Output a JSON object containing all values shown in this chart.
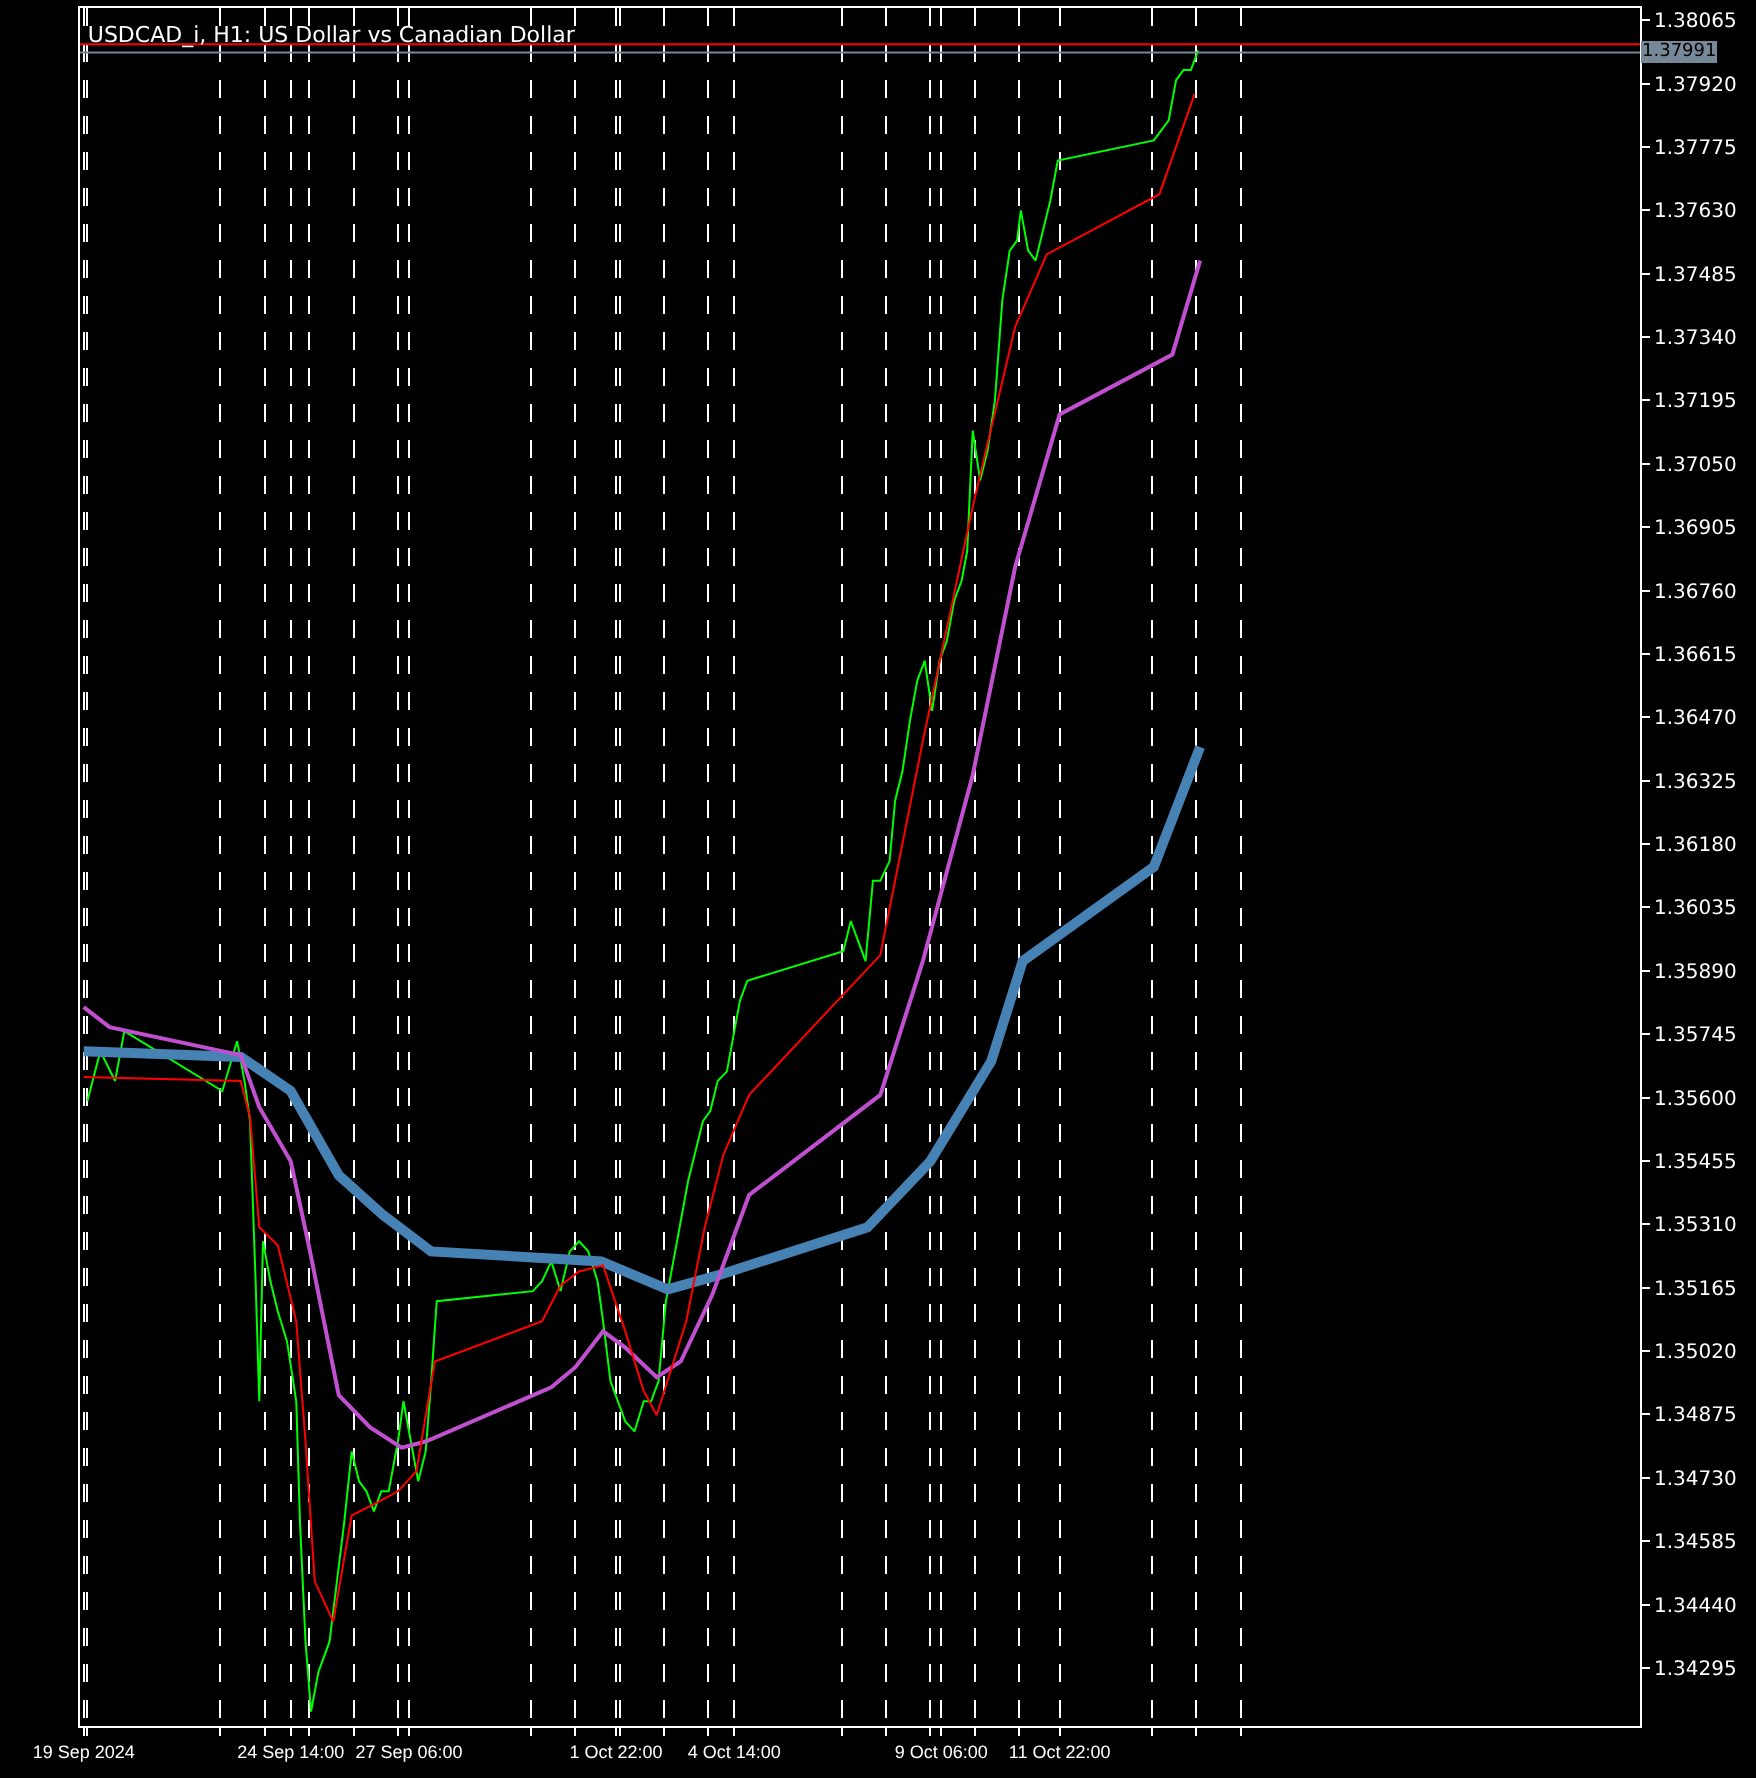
{
  "chart_data": {
    "type": "line",
    "title": "USDCAD_i, H1: US Dollar vs Canadian Dollar",
    "series": [
      {
        "color": "#00ff00",
        "x": [
          "2024-09-20T00:00",
          "2024-09-20T07:00",
          "2024-09-20T15:00",
          "2024-09-20T20:00",
          "2024-09-23T01:00",
          "2024-09-23T09:00",
          "2024-09-23T13:00",
          "2024-09-23T16:00",
          "2024-09-23T19:00",
          "2024-09-23T21:00",
          "2024-09-23T23:00",
          "2024-09-24T03:00",
          "2024-09-24T07:00",
          "2024-09-24T12:00",
          "2024-09-24T17:00",
          "2024-09-24T19:00",
          "2024-09-24T22:00",
          "2024-09-25T01:00",
          "2024-09-25T05:00",
          "2024-09-25T11:00",
          "2024-09-25T15:00",
          "2024-09-25T19:00",
          "2024-09-25T23:00",
          "2024-09-26T03:00",
          "2024-09-26T07:00",
          "2024-09-26T11:00",
          "2024-09-26T15:00",
          "2024-09-26T19:00",
          "2024-09-27T00:00",
          "2024-09-27T03:00",
          "2024-09-27T07:00",
          "2024-09-27T11:00",
          "2024-09-27T15:00",
          "2024-09-27T18:00",
          "2024-09-27T21:00",
          "2024-09-30T01:00",
          "2024-09-30T06:00",
          "2024-09-30T11:00",
          "2024-09-30T16:00",
          "2024-09-30T21:00",
          "2024-10-01T02:00",
          "2024-10-01T07:00",
          "2024-10-01T12:00",
          "2024-10-01T15:00",
          "2024-10-01T19:00",
          "2024-10-01T23:00",
          "2024-10-02T03:00",
          "2024-10-02T08:00",
          "2024-10-02T13:00",
          "2024-10-02T17:00",
          "2024-10-02T21:00",
          "2024-10-03T01:00",
          "2024-10-03T05:00",
          "2024-10-03T09:00",
          "2024-10-03T13:00",
          "2024-10-03T17:00",
          "2024-10-03T21:00",
          "2024-10-04T01:00",
          "2024-10-04T05:00",
          "2024-10-04T10:00",
          "2024-10-04T13:00",
          "2024-10-04T17:00",
          "2024-10-04T21:00",
          "2024-10-07T01:00",
          "2024-10-07T05:00",
          "2024-10-07T09:00",
          "2024-10-07T13:00",
          "2024-10-07T17:00",
          "2024-10-07T21:00",
          "2024-10-08T02:00",
          "2024-10-08T05:00",
          "2024-10-08T09:00",
          "2024-10-08T13:00",
          "2024-10-08T17:00",
          "2024-10-08T21:00",
          "2024-10-09T01:00",
          "2024-10-09T05:00",
          "2024-10-09T09:00",
          "2024-10-09T13:00",
          "2024-10-09T17:00",
          "2024-10-09T20:00",
          "2024-10-09T23:00",
          "2024-10-10T03:00",
          "2024-10-10T07:00",
          "2024-10-10T11:00",
          "2024-10-10T15:00",
          "2024-10-10T19:00",
          "2024-10-10T23:00",
          "2024-10-11T01:00",
          "2024-10-11T05:00",
          "2024-10-11T09:00",
          "2024-10-11T13:00",
          "2024-10-11T17:00",
          "2024-10-11T21:00",
          "2024-10-14T01:00",
          "2024-10-14T05:00",
          "2024-10-14T09:00",
          "2024-10-14T13:00",
          "2024-10-14T17:00",
          "2024-10-14T21:00",
          "2024-10-15T01:00"
        ],
        "values": [
          1.35592,
          1.35706,
          1.35638,
          1.35752,
          1.35615,
          1.35729,
          1.35638,
          1.35546,
          1.3518,
          1.34905,
          1.35271,
          1.3518,
          1.35111,
          1.35042,
          1.34905,
          1.3463,
          1.34355,
          1.34195,
          1.34286,
          1.34355,
          1.34493,
          1.3463,
          1.3479,
          1.34722,
          1.34699,
          1.34653,
          1.34699,
          1.34699,
          1.34813,
          1.34905,
          1.34813,
          1.34722,
          1.3479,
          1.34951,
          1.35134,
          1.35157,
          1.3518,
          1.35225,
          1.35157,
          1.35248,
          1.35271,
          1.35248,
          1.3518,
          1.35088,
          1.34951,
          1.34905,
          1.34859,
          1.34836,
          1.34905,
          1.34905,
          1.34951,
          1.35134,
          1.35225,
          1.35317,
          1.35409,
          1.35477,
          1.35546,
          1.35569,
          1.35638,
          1.3566,
          1.35729,
          1.35821,
          1.35867,
          1.35935,
          1.36004,
          1.35958,
          1.35912,
          1.36096,
          1.36096,
          1.36141,
          1.36279,
          1.36347,
          1.36462,
          1.36554,
          1.36599,
          1.36485,
          1.36599,
          1.36645,
          1.36737,
          1.36783,
          1.36851,
          1.37126,
          1.37012,
          1.3708,
          1.37195,
          1.37424,
          1.37538,
          1.37561,
          1.3763,
          1.37538,
          1.37515,
          1.37584,
          1.37653,
          1.37744,
          1.3779,
          1.37813,
          1.37836,
          1.37928,
          1.37951,
          1.37951,
          1.37996
        ]
      },
      {
        "color": "#4682b4",
        "x": [
          "2024-09-19T22:00",
          "2024-09-23T11:00",
          "2024-09-24T14:00",
          "2024-09-25T16:00",
          "2024-09-26T16:00",
          "2024-09-27T18:00",
          "2024-10-01T14:00",
          "2024-10-03T02:00",
          "2024-10-04T05:00",
          "2024-10-07T14:00",
          "2024-10-09T00:00",
          "2024-10-10T09:00",
          "2024-10-11T02:00",
          "2024-10-14T01:00",
          "2024-10-15T02:00"
        ],
        "values": [
          1.35706,
          1.35693,
          1.35615,
          1.35422,
          1.35331,
          1.35248,
          1.35225,
          1.35161,
          1.35193,
          1.35303,
          1.35454,
          1.35683,
          1.35912,
          1.36128,
          1.36402
        ]
      },
      {
        "color": "#c050d0",
        "x": [
          "2024-09-19T22:00",
          "2024-09-20T12:00",
          "2024-09-23T11:00",
          "2024-09-23T21:00",
          "2024-09-24T14:00",
          "2024-09-25T00:00",
          "2024-09-25T16:00",
          "2024-09-26T09:00",
          "2024-09-27T02:00",
          "2024-09-27T15:00",
          "2024-09-30T11:00",
          "2024-10-01T00:00",
          "2024-10-01T15:00",
          "2024-10-02T03:00",
          "2024-10-02T20:00",
          "2024-10-03T09:00",
          "2024-10-04T02:00",
          "2024-10-04T22:00",
          "2024-10-07T21:00",
          "2024-10-08T20:00",
          "2024-10-09T23:00",
          "2024-10-10T22:00",
          "2024-10-11T22:00",
          "2024-10-14T11:00",
          "2024-10-15T02:00"
        ],
        "values": [
          1.35807,
          1.35761,
          1.35697,
          1.35578,
          1.35454,
          1.35257,
          1.34919,
          1.34845,
          1.34799,
          1.34813,
          1.34937,
          1.34983,
          1.35065,
          1.35028,
          1.3496,
          1.34996,
          1.35148,
          1.35377,
          1.35606,
          1.35912,
          1.36338,
          1.36815,
          1.37163,
          1.373,
          1.37515
        ]
      },
      {
        "color": "#ff0000",
        "x": [
          "2024-09-19T22:00",
          "2024-09-23T11:00",
          "2024-09-23T16:00",
          "2024-09-23T21:00",
          "2024-09-24T07:00",
          "2024-09-24T17:00",
          "2024-09-24T22:00",
          "2024-09-25T03:00",
          "2024-09-25T13:00",
          "2024-09-25T23:00",
          "2024-09-26T14:00",
          "2024-09-27T00:00",
          "2024-09-27T10:00",
          "2024-09-27T20:00",
          "2024-09-30T06:00",
          "2024-09-30T16:00",
          "2024-10-01T02:00",
          "2024-10-01T15:00",
          "2024-10-02T03:00",
          "2024-10-02T13:00",
          "2024-10-02T20:00",
          "2024-10-03T12:00",
          "2024-10-03T22:00",
          "2024-10-04T08:00",
          "2024-10-04T22:00",
          "2024-10-07T21:00",
          "2024-10-08T20:00",
          "2024-10-09T23:00",
          "2024-10-10T22:00",
          "2024-10-11T15:00",
          "2024-10-14T04:00",
          "2024-10-14T23:00"
        ],
        "values": [
          1.35647,
          1.35638,
          1.35555,
          1.35303,
          1.35262,
          1.35088,
          1.34813,
          1.34493,
          1.34401,
          1.34644,
          1.34676,
          1.34699,
          1.34745,
          1.34996,
          1.35088,
          1.3517,
          1.35202,
          1.35216,
          1.35065,
          1.34928,
          1.34873,
          1.35088,
          1.35303,
          1.35468,
          1.35606,
          1.35926,
          1.36416,
          1.36952,
          1.37364,
          1.37529,
          1.37667,
          1.37896
        ]
      }
    ],
    "xlim": [
      "2024-09-19T20:00",
      "2024-10-25T00:00"
    ],
    "xticks": [
      {
        "value": "2024-09-19T22:00",
        "label": "19 Sep 2024"
      },
      {
        "value": "2024-09-20",
        "label": null
      },
      {
        "value": "2024-09-23",
        "label": null
      },
      {
        "value": "2024-09-24",
        "label": null
      },
      {
        "value": "2024-09-24T14:00",
        "label": "24 Sep 14:00"
      },
      {
        "value": "2024-09-25",
        "label": null
      },
      {
        "value": "2024-09-26",
        "label": null
      },
      {
        "value": "2024-09-27",
        "label": null
      },
      {
        "value": "2024-09-27T06:00",
        "label": "27 Sep 06:00"
      },
      {
        "value": "2024-09-30",
        "label": null
      },
      {
        "value": "2024-10-01",
        "label": null
      },
      {
        "value": "2024-10-01T22:00",
        "label": "1 Oct 22:00"
      },
      {
        "value": "2024-10-02",
        "label": null
      },
      {
        "value": "2024-10-03",
        "label": null
      },
      {
        "value": "2024-10-04",
        "label": null
      },
      {
        "value": "2024-10-04T14:00",
        "label": "4 Oct 14:00"
      },
      {
        "value": "2024-10-07",
        "label": null
      },
      {
        "value": "2024-10-08",
        "label": null
      },
      {
        "value": "2024-10-09",
        "label": null
      },
      {
        "value": "2024-10-09T06:00",
        "label": "9 Oct 06:00"
      },
      {
        "value": "2024-10-10",
        "label": null
      },
      {
        "value": "2024-10-11",
        "label": null
      },
      {
        "value": "2024-10-11T22:00",
        "label": "11 Oct 22:00"
      },
      {
        "value": "2024-10-14",
        "label": null
      },
      {
        "value": "2024-10-15",
        "label": null
      },
      {
        "value": "2024-10-16",
        "label": null
      }
    ],
    "ylim": [
      1.34162,
      1.38093
    ],
    "yticks": [
      1.38065,
      {
        "value": 1.3792,
        "label": "1.37920"
      },
      1.37775,
      {
        "value": 1.3763,
        "label": "1.37630"
      },
      1.37485,
      {
        "value": 1.3734,
        "label": "1.37340"
      },
      1.37195,
      {
        "value": 1.3705,
        "label": "1.37050"
      },
      1.36905,
      {
        "value": 1.3676,
        "label": "1.36760"
      },
      1.36615,
      {
        "value": 1.3647,
        "label": "1.36470"
      },
      1.36325,
      {
        "value": 1.3618,
        "label": "1.36180"
      },
      1.36035,
      {
        "value": 1.3589,
        "label": "1.35890"
      },
      1.35745,
      {
        "value": 1.356,
        "label": "1.35600"
      },
      1.35455,
      {
        "value": 1.3531,
        "label": "1.35310"
      },
      1.35165,
      {
        "value": 1.3502,
        "label": "1.35020"
      },
      1.34875,
      {
        "value": 1.3473,
        "label": "1.34730"
      },
      1.34585,
      {
        "value": 1.3444,
        "label": "1.34440"
      },
      1.34295
    ],
    "ref_lines": [
      {
        "axis": "y",
        "value": 1.3801,
        "color": "#ff0000"
      },
      {
        "axis": "y",
        "value": 1.37991,
        "label": "1.37991",
        "color": "#778899"
      }
    ],
    "grid": "x",
    "line_style": "solid",
    "marker": "none"
  }
}
